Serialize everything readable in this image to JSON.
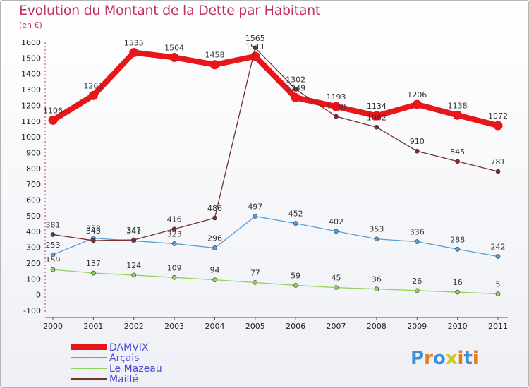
{
  "header": {
    "title": "Evolution du Montant de la Dette par Habitant",
    "subtitle": "(en €)"
  },
  "logo": {
    "text": "Proxiti"
  },
  "chart_data": {
    "type": "line",
    "title": "Evolution du Montant de la Dette par Habitant",
    "subtitle": "(en €)",
    "categories": [
      "2000",
      "2001",
      "2002",
      "2003",
      "2004",
      "2005",
      "2006",
      "2007",
      "2008",
      "2009",
      "2010",
      "2011"
    ],
    "ylim": [
      -100,
      1600
    ],
    "yticks": [
      -100,
      0,
      100,
      200,
      300,
      400,
      500,
      600,
      700,
      800,
      900,
      1000,
      1100,
      1200,
      1300,
      1400,
      1500,
      1600
    ],
    "grid": false,
    "legend_position": "bottom-left",
    "series": [
      {
        "name": "DAMVIX",
        "color": "#e8151b",
        "values": [
          1106,
          1263,
          1535,
          1504,
          1458,
          1511,
          1249,
          1193,
          1134,
          1206,
          1138,
          1072
        ]
      },
      {
        "name": "Arçais",
        "color": "#5a9fd4",
        "values": [
          253,
          358,
          341,
          323,
          296,
          497,
          452,
          402,
          353,
          336,
          288,
          242
        ]
      },
      {
        "name": "Le Mazeau",
        "color": "#8fd45a",
        "values": [
          159,
          137,
          124,
          109,
          94,
          77,
          59,
          45,
          36,
          26,
          16,
          5
        ]
      },
      {
        "name": "Maillé",
        "color": "#7a2e2e",
        "values": [
          381,
          343,
          347,
          416,
          486,
          1565,
          1302,
          1130,
          1062,
          910,
          845,
          781
        ]
      }
    ]
  }
}
